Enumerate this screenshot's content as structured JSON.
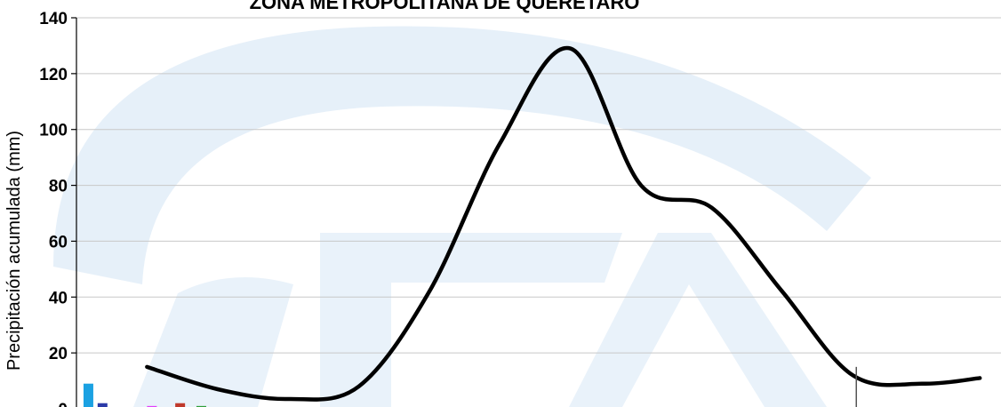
{
  "chart_data": {
    "type": "line",
    "title": "ZONA METROPOLITANA DE QUERETARO",
    "ylabel": "Precipitación acumulada (mm)",
    "xlabel": "",
    "ylim": [
      0,
      140
    ],
    "yticks": [
      0,
      20,
      40,
      60,
      80,
      100,
      120,
      140
    ],
    "grid": true,
    "colors": {
      "line": "#000000",
      "watermark": "#dbe9f7",
      "bars": [
        "#1ba1e2",
        "#2b3aa8",
        "#e040fb",
        "#26a69a",
        "#c0392b",
        "#2e9e3a"
      ]
    },
    "series": [
      {
        "values": [
          [
            1,
            15
          ],
          [
            2,
            7
          ],
          [
            3,
            3.5
          ],
          [
            4,
            8
          ],
          [
            5,
            42
          ],
          [
            6,
            95
          ],
          [
            7,
            129
          ],
          [
            8,
            80
          ],
          [
            9,
            72
          ],
          [
            10,
            42
          ],
          [
            11,
            12
          ],
          [
            12,
            9
          ],
          [
            12.8,
            11
          ]
        ]
      }
    ],
    "bars": [
      {
        "x": 0.1,
        "value": 9
      },
      {
        "x": 0.3,
        "value": 2
      },
      {
        "x": 1.0,
        "value": 1
      },
      {
        "x": 1.2,
        "value": 0.5
      },
      {
        "x": 1.4,
        "value": 2
      },
      {
        "x": 1.7,
        "value": 1
      }
    ]
  }
}
